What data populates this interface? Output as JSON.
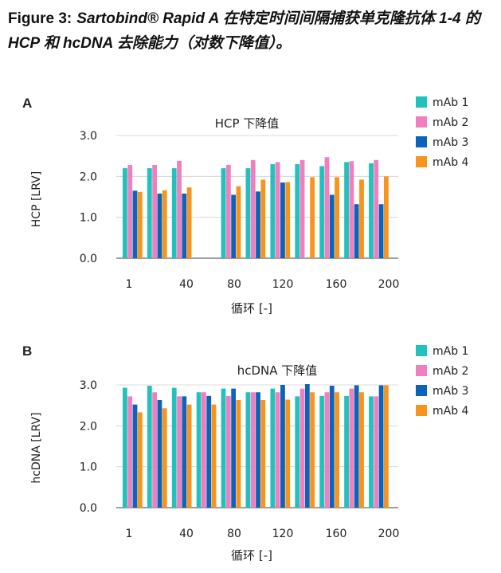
{
  "caption": {
    "lead": "Figure 3:",
    "body": "Sartobind® Rapid A 在特定时间间隔捕获单克隆抗体 1-4 的 HCP 和 hcDNA 去除能力（对数下降值）。"
  },
  "colors": {
    "mAb1": "#22c1bd",
    "mAb2": "#ef7fbf",
    "mAb3": "#0d63b8",
    "mAb4": "#f7941d",
    "axis": "#555555",
    "text": "#222222"
  },
  "chart_data": [
    {
      "panel_label": "A",
      "type": "bar",
      "title": "HCP 下降值",
      "xlabel": "循环  [-]",
      "ylabel": "HCP [LRV]",
      "ylim": [
        0,
        3.0
      ],
      "yticks": [
        "0.0",
        "1.0",
        "2.0",
        "3.0"
      ],
      "xtick_labels": [
        "1",
        "40",
        "80",
        "120",
        "160",
        "200"
      ],
      "legend": [
        "mAb 1",
        "mAb 2",
        "mAb 3",
        "mAb 4"
      ],
      "legend_position": "top-right",
      "cycles": [
        1,
        20,
        40,
        60,
        80,
        100,
        120,
        140,
        160,
        180,
        200
      ],
      "series": [
        {
          "name": "mAb 1",
          "values": [
            2.2,
            2.2,
            2.2,
            null,
            2.2,
            2.2,
            2.3,
            2.3,
            2.25,
            2.35,
            2.32
          ]
        },
        {
          "name": "mAb 2",
          "values": [
            2.28,
            2.28,
            2.38,
            null,
            2.28,
            2.4,
            2.35,
            2.4,
            2.47,
            2.37,
            2.4
          ]
        },
        {
          "name": "mAb 3",
          "values": [
            1.65,
            1.58,
            1.58,
            null,
            1.55,
            1.63,
            1.85,
            null,
            1.55,
            1.32,
            1.32
          ]
        },
        {
          "name": "mAb 4",
          "values": [
            1.62,
            1.66,
            1.73,
            null,
            1.76,
            1.92,
            1.86,
            1.98,
            1.98,
            1.92,
            2.0
          ]
        }
      ]
    },
    {
      "panel_label": "B",
      "type": "bar",
      "title": "hcDNA 下降值",
      "xlabel": "循环  [-]",
      "ylabel": "hcDNA [LRV]",
      "ylim": [
        0,
        3.0
      ],
      "yticks": [
        "0.0",
        "1.0",
        "2.0",
        "3.0"
      ],
      "xtick_labels": [
        "1",
        "40",
        "80",
        "120",
        "160",
        "200"
      ],
      "legend": [
        "mAb 1",
        "mAb 2",
        "mAb 3",
        "mAb 4"
      ],
      "legend_position": "top-right",
      "cycles": [
        1,
        20,
        40,
        60,
        80,
        100,
        120,
        140,
        160,
        180,
        200
      ],
      "series": [
        {
          "name": "mAb 1",
          "values": [
            2.93,
            2.98,
            2.93,
            2.82,
            2.91,
            2.82,
            2.91,
            2.72,
            2.73,
            2.73,
            2.72
          ]
        },
        {
          "name": "mAb 2",
          "values": [
            2.72,
            2.82,
            2.72,
            2.82,
            2.73,
            2.82,
            2.82,
            2.91,
            2.82,
            2.91,
            2.72
          ]
        },
        {
          "name": "mAb 3",
          "values": [
            2.52,
            2.63,
            2.72,
            2.73,
            2.91,
            2.82,
            3.0,
            3.02,
            2.98,
            2.99,
            2.99
          ]
        },
        {
          "name": "mAb 4",
          "values": [
            2.33,
            2.43,
            2.52,
            2.52,
            2.63,
            2.63,
            2.64,
            2.82,
            2.82,
            2.82,
            2.99
          ]
        }
      ]
    }
  ]
}
